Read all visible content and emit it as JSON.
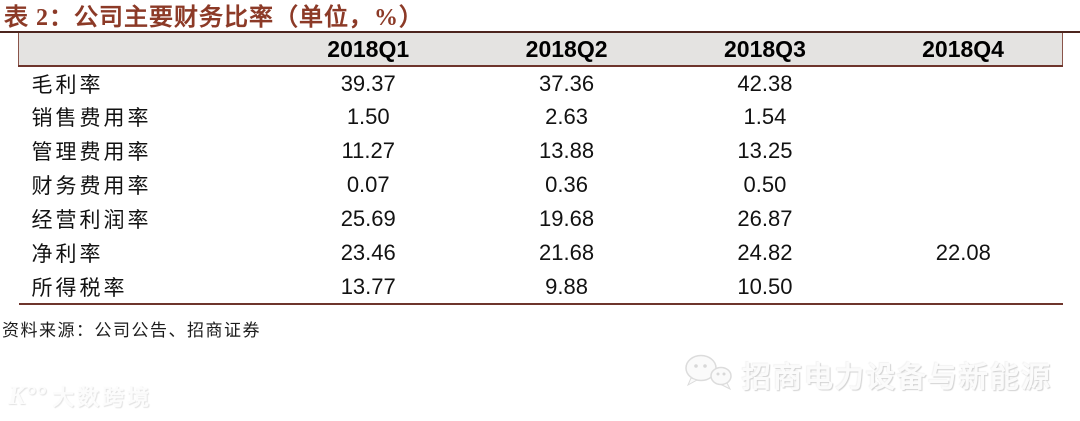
{
  "title": "表 2：公司主要财务比率（单位，%）",
  "table": {
    "columns": [
      "",
      "2018Q1",
      "2018Q2",
      "2018Q3",
      "2018Q4"
    ],
    "rows": [
      {
        "label": "毛利率",
        "values": [
          "39.37",
          "37.36",
          "42.38",
          ""
        ]
      },
      {
        "label": "销售费用率",
        "values": [
          "1.50",
          "2.63",
          "1.54",
          ""
        ]
      },
      {
        "label": "管理费用率",
        "values": [
          "11.27",
          "13.88",
          "13.25",
          ""
        ]
      },
      {
        "label": "财务费用率",
        "values": [
          "0.07",
          "0.36",
          "0.50",
          ""
        ]
      },
      {
        "label": "经营利润率",
        "values": [
          "25.69",
          "19.68",
          "26.87",
          ""
        ]
      },
      {
        "label": "净利率",
        "values": [
          "23.46",
          "21.68",
          "24.82",
          "22.08"
        ]
      },
      {
        "label": "所得税率",
        "values": [
          "13.77",
          "9.88",
          "10.50",
          ""
        ]
      }
    ]
  },
  "source": "资料来源：公司公告、招商证券",
  "watermarks": {
    "right_text": "招商电力设备与新能源",
    "left_text": "大数跨境",
    "left_mark": "K°°"
  },
  "colors": {
    "title_red": "#8c3a27",
    "rule_dark": "#4c251e",
    "border_red": "#6e352c",
    "header_bg": "#e4e3e1"
  }
}
